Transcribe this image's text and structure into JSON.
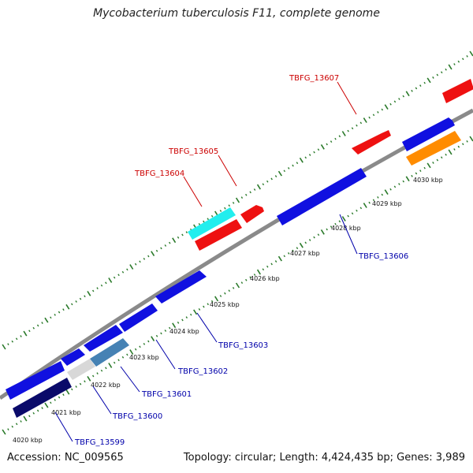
{
  "header": {
    "title": "Mycobacterium tuberculosis F11, complete genome"
  },
  "footer": {
    "accession": "Accession: NC_009565",
    "topology": "Topology: circular; Length: 4,424,435 bp; Genes: 3,989"
  },
  "colors": {
    "backbone": "#8a8a8a",
    "tick": "#2a7a2a",
    "gene_blue": "#1010e0",
    "gene_red": "#ee1111",
    "gene_cyan": "#22eeee",
    "gene_orange": "#ff8c00",
    "gene_navy": "#0a0a6a",
    "gene_steel": "#4682b4",
    "gene_light_grey": "#d8d8d8",
    "label_top": "#cc0000",
    "label_bottom": "#0000aa"
  },
  "scale": {
    "kbp_labels": [
      "4020 kbp",
      "4021 kbp",
      "4022 kbp",
      "4023 kbp",
      "4024 kbp",
      "4025 kbp",
      "4026 kbp",
      "4027 kbp",
      "4028 kbp",
      "4029 kbp",
      "4030 kbp"
    ]
  },
  "gene_labels": {
    "top": [
      "TBFG_13604",
      "TBFG_13605",
      "TBFG_13607"
    ],
    "bottom": [
      "TBFG_13599",
      "TBFG_13600",
      "TBFG_13601",
      "TBFG_13602",
      "TBFG_13603",
      "TBFG_13606"
    ]
  }
}
